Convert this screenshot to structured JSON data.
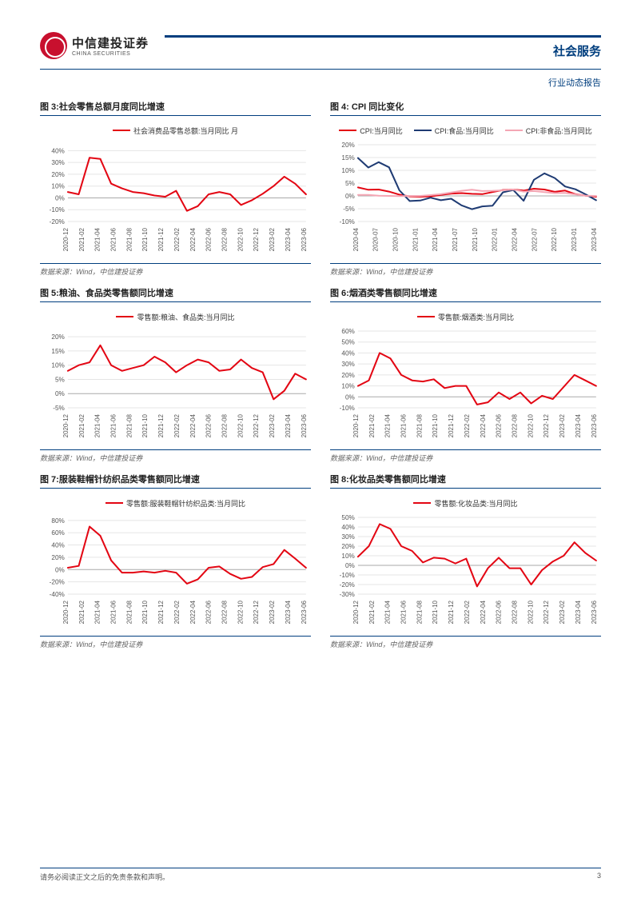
{
  "header": {
    "brand_cn": "中信建投证券",
    "brand_en": "CHINA SECURITIES",
    "sector": "社会服务",
    "doc_type": "行业动态报告"
  },
  "footer": {
    "disclaimer": "请务必阅读正文之后的免责条款和声明。",
    "page": "3"
  },
  "source_label_prefix": "数据来源：",
  "source_label_value": "Wind，中信建投证券",
  "common_x_labels": [
    "2020-12",
    "2021-02",
    "2021-04",
    "2021-06",
    "2021-08",
    "2021-10",
    "2021-12",
    "2022-02",
    "2022-04",
    "2022-06",
    "2022-08",
    "2022-10",
    "2022-12",
    "2023-02",
    "2023-04",
    "2023-06"
  ],
  "cpi_x_labels": [
    "2020-04",
    "2020-07",
    "2020-10",
    "2021-01",
    "2021-04",
    "2021-07",
    "2021-10",
    "2022-01",
    "2022-04",
    "2022-07",
    "2022-10",
    "2023-01",
    "2023-04"
  ],
  "colors": {
    "brand_blue": "#003e7e",
    "brand_red": "#c8102e",
    "series_red": "#e30613",
    "series_navy": "#1f3b73",
    "series_pink": "#f4a6b4",
    "grid": "#e5e5e5",
    "axis_text": "#555555",
    "bg": "#ffffff"
  },
  "charts": {
    "c3": {
      "title": "图 3:社会零售总额月度同比增速",
      "legend": [
        {
          "label": "社会消费品零售总额:当月同比 月",
          "color": "#e30613"
        }
      ],
      "y_ticks": [
        -20,
        -10,
        0,
        10,
        20,
        30,
        40
      ],
      "y_fmt": "%",
      "ylim": [
        -20,
        45
      ],
      "x_labels_key": "common_x_labels",
      "series": [
        {
          "color": "#e30613",
          "values": [
            5,
            3,
            34,
            33,
            12,
            8,
            5,
            4,
            2,
            1,
            6,
            -11,
            -7,
            3,
            5,
            3,
            -6,
            -2,
            3.5,
            10,
            18,
            12,
            3
          ]
        }
      ]
    },
    "c4": {
      "title": "图 4: CPI 同比变化",
      "legend": [
        {
          "label": "CPI:当月同比",
          "color": "#e30613"
        },
        {
          "label": "CPI:食品:当月同比",
          "color": "#1f3b73"
        },
        {
          "label": "CPI:非食品:当月同比",
          "color": "#f4a6b4"
        }
      ],
      "y_ticks": [
        -10,
        -5,
        0,
        5,
        10,
        15,
        20
      ],
      "y_fmt": "%",
      "ylim": [
        -10,
        20
      ],
      "x_labels_key": "cpi_x_labels",
      "series": [
        {
          "color": "#e30613",
          "values": [
            3.3,
            2.4,
            2.5,
            1.7,
            0.5,
            -0.2,
            -0.3,
            -0.2,
            0.4,
            0.9,
            1.1,
            0.8,
            0.7,
            1.5,
            2.3,
            2.5,
            2.1,
            2.8,
            2.5,
            1.6,
            2.1,
            0.7,
            0.1,
            -0.3
          ]
        },
        {
          "color": "#1f3b73",
          "values": [
            14.8,
            11.1,
            13.2,
            11.2,
            2.2,
            -2,
            -1.8,
            -0.7,
            -1.7,
            -1.1,
            -3.7,
            -5.2,
            -4.1,
            -3.8,
            1.4,
            2.3,
            -1.9,
            6.3,
            8.8,
            7.0,
            3.7,
            2.6,
            0.6,
            -1.7
          ]
        },
        {
          "color": "#f4a6b4",
          "values": [
            0.4,
            0.4,
            0.1,
            0,
            -0.1,
            0,
            0,
            0.3,
            0.7,
            1.3,
            2.0,
            2.4,
            1.9,
            2.0,
            2.2,
            2.5,
            1.7,
            1.9,
            1.5,
            1.1,
            1.2,
            0.6,
            0.1,
            0
          ]
        }
      ]
    },
    "c5": {
      "title": "图 5:粮油、食品类零售额同比增速",
      "legend": [
        {
          "label": "零售额:粮油、食品类:当月同比",
          "color": "#e30613"
        }
      ],
      "y_ticks": [
        -5,
        0,
        5,
        10,
        15,
        20
      ],
      "y_fmt": "%",
      "ylim": [
        -5,
        22
      ],
      "x_labels_key": "common_x_labels",
      "series": [
        {
          "color": "#e30613",
          "values": [
            8,
            10,
            11,
            17,
            10,
            8,
            9,
            10,
            13,
            11,
            7.5,
            10,
            12,
            11,
            8,
            8.5,
            12,
            9,
            7.5,
            -2,
            1,
            7,
            5
          ]
        }
      ]
    },
    "c6": {
      "title": "图 6:烟酒类零售额同比增速",
      "legend": [
        {
          "label": "零售额:烟酒类:当月同比",
          "color": "#e30613"
        }
      ],
      "y_ticks": [
        -10,
        0,
        10,
        20,
        30,
        40,
        50,
        60
      ],
      "y_fmt": "%",
      "ylim": [
        -10,
        60
      ],
      "x_labels_key": "common_x_labels",
      "series": [
        {
          "color": "#e30613",
          "values": [
            10,
            15,
            40,
            35,
            20,
            15,
            14,
            16,
            8,
            10,
            10,
            -7,
            -5,
            4,
            -2,
            4,
            -6,
            1,
            -2,
            9,
            20,
            15,
            10
          ]
        }
      ]
    },
    "c7": {
      "title": "图 7:服装鞋帽针纺织品类零售额同比增速",
      "legend": [
        {
          "label": "零售额:服装鞋帽针纺织品类:当月同比",
          "color": "#e30613"
        }
      ],
      "y_ticks": [
        -40,
        -20,
        0,
        20,
        40,
        60,
        80
      ],
      "y_fmt": "%",
      "ylim": [
        -40,
        85
      ],
      "x_labels_key": "common_x_labels",
      "series": [
        {
          "color": "#e30613",
          "values": [
            3,
            6,
            70,
            55,
            15,
            -5,
            -5,
            -3,
            -5,
            -2,
            -5,
            -23,
            -16,
            3,
            5,
            -7,
            -15,
            -12,
            4,
            9,
            32,
            18,
            3
          ]
        }
      ]
    },
    "c8": {
      "title": "图 8:化妆品类零售额同比增速",
      "legend": [
        {
          "label": "零售额:化妆品类:当月同比",
          "color": "#e30613"
        }
      ],
      "y_ticks": [
        -30,
        -20,
        -10,
        0,
        10,
        20,
        30,
        40,
        50
      ],
      "y_fmt": "%",
      "ylim": [
        -30,
        50
      ],
      "x_labels_key": "common_x_labels",
      "series": [
        {
          "color": "#e30613",
          "values": [
            9,
            20,
            43,
            38,
            20,
            15,
            3,
            8,
            7,
            2,
            7,
            -22,
            -3,
            8,
            -3,
            -3,
            -20,
            -5,
            4,
            10,
            24,
            13,
            5
          ]
        }
      ]
    }
  }
}
